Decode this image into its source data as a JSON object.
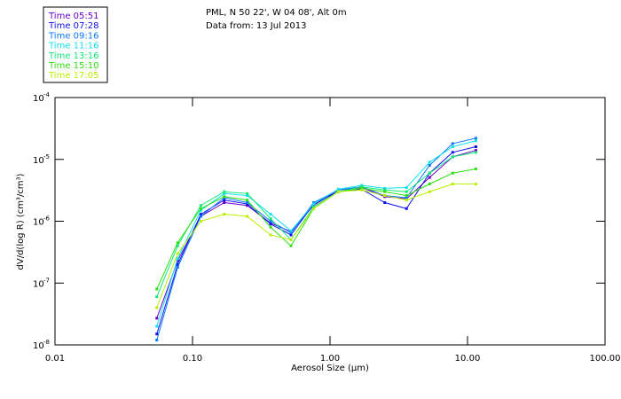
{
  "chart_data": {
    "type": "line",
    "title_lines": [
      "PML, N 50 22', W 04 08', Alt 0m",
      "Data from: 13 Jul 2013"
    ],
    "xlabel": "Aerosol Size (µm)",
    "ylabel": "dV/d(log R) (cm³/cm³)",
    "xscale": "log",
    "yscale": "log",
    "xlim": [
      0.01,
      100
    ],
    "ylim": [
      1e-08,
      0.0001
    ],
    "xticks": [
      {
        "v": 0.01,
        "label": "0.01"
      },
      {
        "v": 0.1,
        "label": "0.10"
      },
      {
        "v": 1,
        "label": "1.00"
      },
      {
        "v": 10,
        "label": "10.00"
      },
      {
        "v": 100,
        "label": "100.00"
      }
    ],
    "yticks": [
      {
        "v": 0.0001,
        "base": "10",
        "exp": "-4"
      },
      {
        "v": 1e-05,
        "base": "10",
        "exp": "-5"
      },
      {
        "v": 1e-06,
        "base": "10",
        "exp": "-6"
      },
      {
        "v": 1e-07,
        "base": "10",
        "exp": "-7"
      },
      {
        "v": 1e-08,
        "base": "10",
        "exp": "-8"
      }
    ],
    "legend_position": "top-left",
    "x": [
      0.055,
      0.078,
      0.115,
      0.17,
      0.25,
      0.37,
      0.52,
      0.76,
      1.15,
      1.7,
      2.5,
      3.6,
      5.3,
      7.8,
      11.5
    ],
    "series": [
      {
        "name": "Time 05:51",
        "color": "#6a00c8",
        "values": [
          2.7e-08,
          2.3e-07,
          1.2e-06,
          2e-06,
          1.8e-06,
          9.3e-07,
          6.8e-07,
          1.8e-06,
          3.2e-06,
          3.5e-06,
          2.5e-06,
          2.3e-06,
          5.1e-06,
          1.1e-05,
          1.4e-05
        ]
      },
      {
        "name": "Time 07:28",
        "color": "#1010f0",
        "values": [
          1.5e-08,
          2e-07,
          1.3e-06,
          2.2e-06,
          1.9e-06,
          9e-07,
          6e-07,
          1.9e-06,
          3e-06,
          3.3e-06,
          2e-06,
          1.6e-06,
          6e-06,
          1.3e-05,
          1.6e-05
        ]
      },
      {
        "name": "Time 09:16",
        "color": "#0a78ff",
        "values": [
          1.2e-08,
          1.8e-07,
          1.2e-06,
          2.4e-06,
          2e-06,
          1e-06,
          6.5e-07,
          2e-06,
          3.2e-06,
          3.6e-06,
          2.6e-06,
          2.4e-06,
          8e-06,
          1.8e-05,
          2.2e-05
        ]
      },
      {
        "name": "Time 11:16",
        "color": "#10e0f0",
        "values": [
          2e-08,
          2.5e-07,
          1.5e-06,
          2.8e-06,
          2.6e-06,
          1.3e-06,
          7e-07,
          1.9e-06,
          3.3e-06,
          3.8e-06,
          3.4e-06,
          3.5e-06,
          9e-06,
          1.6e-05,
          2e-05
        ]
      },
      {
        "name": "Time 13:16",
        "color": "#10e878",
        "values": [
          6e-08,
          4e-07,
          1.8e-06,
          3e-06,
          2.8e-06,
          1.1e-06,
          5e-07,
          1.7e-06,
          3e-06,
          3.6e-06,
          3.2e-06,
          3e-06,
          6e-06,
          1.1e-05,
          1.3e-05
        ]
      },
      {
        "name": "Time 15:10",
        "color": "#30e010",
        "values": [
          8e-08,
          4.5e-07,
          1.6e-06,
          2.5e-06,
          2.2e-06,
          8e-07,
          4e-07,
          1.6e-06,
          3e-06,
          3.4e-06,
          3e-06,
          2.6e-06,
          4e-06,
          6e-06,
          7e-06
        ]
      },
      {
        "name": "Time 17:05",
        "color": "#b8f000",
        "values": [
          4e-08,
          3e-07,
          1e-06,
          1.3e-06,
          1.2e-06,
          6e-07,
          5e-07,
          1.6e-06,
          3e-06,
          3.2e-06,
          2.6e-06,
          2.2e-06,
          3e-06,
          4e-06,
          4e-06
        ]
      }
    ]
  }
}
